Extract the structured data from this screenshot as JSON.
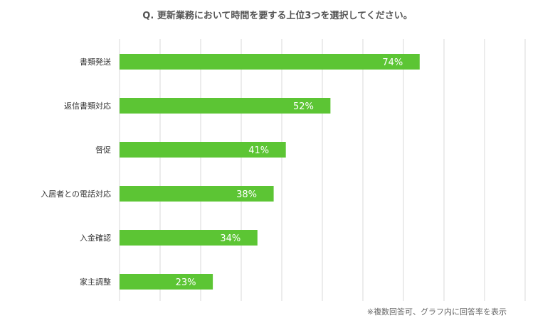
{
  "title": "Q. 更新業務において時間を要する上位3つを選択してください。",
  "note": "※複数回答可、グラフ内に回答率を表示",
  "colors": {
    "bar": "#5cc534",
    "grid": "#d9d9d9",
    "value_text": "#ffffff"
  },
  "chart_data": {
    "type": "bar",
    "orientation": "horizontal",
    "title": "Q. 更新業務において時間を要する上位3つを選択してください。",
    "xlabel": "",
    "ylabel": "",
    "xlim": [
      0,
      100
    ],
    "grid": true,
    "value_unit": "%",
    "categories": [
      "書類発送",
      "返信書類対応",
      "督促",
      "入居者との電話対応",
      "入金確認",
      "家主調整"
    ],
    "values": [
      74,
      52,
      41,
      38,
      34,
      23
    ],
    "value_labels": [
      "74%",
      "52%",
      "41%",
      "38%",
      "34%",
      "23%"
    ]
  }
}
